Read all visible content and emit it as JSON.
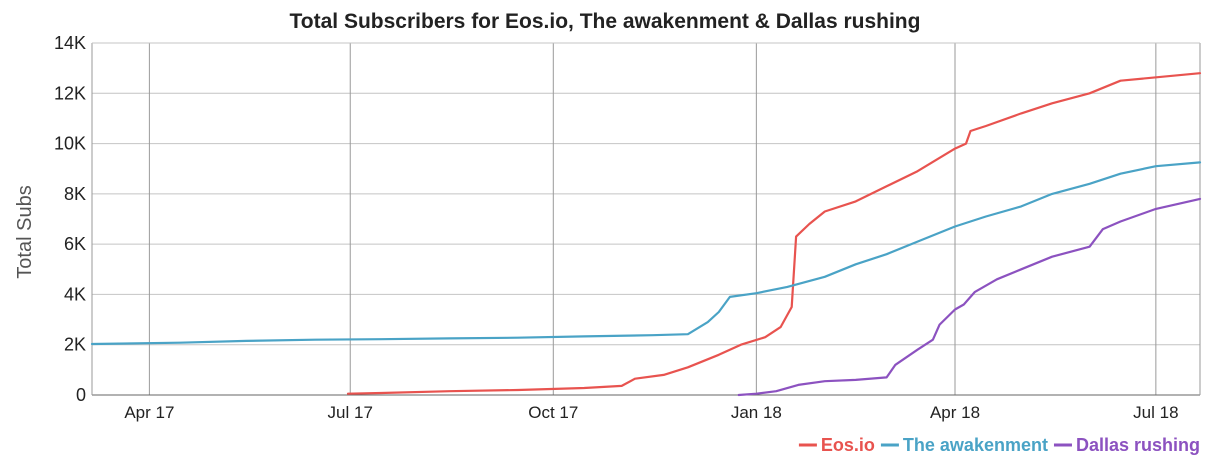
{
  "chart_data": {
    "type": "line",
    "title": "Total Subscribers for Eos.io, The awakenment & Dallas rushing",
    "xlabel": "",
    "ylabel": "Total Subs",
    "ylim": [
      0,
      14000
    ],
    "xlim": [
      "2017-03-06",
      "2018-07-21"
    ],
    "y_ticks": [
      {
        "value": 0,
        "label": "0"
      },
      {
        "value": 2000,
        "label": "2K"
      },
      {
        "value": 4000,
        "label": "4K"
      },
      {
        "value": 6000,
        "label": "6K"
      },
      {
        "value": 8000,
        "label": "8K"
      },
      {
        "value": 10000,
        "label": "10K"
      },
      {
        "value": 12000,
        "label": "12K"
      },
      {
        "value": 14000,
        "label": "14K"
      }
    ],
    "x_ticks": [
      {
        "date": "2017-04-01",
        "label": "Apr 17"
      },
      {
        "date": "2017-07-01",
        "label": "Jul 17"
      },
      {
        "date": "2017-10-01",
        "label": "Oct 17"
      },
      {
        "date": "2018-01-01",
        "label": "Jan 18"
      },
      {
        "date": "2018-04-01",
        "label": "Apr 18"
      },
      {
        "date": "2018-07-01",
        "label": "Jul 18"
      }
    ],
    "grid": true,
    "legend_position": "bottom-right",
    "series": [
      {
        "name": "Eos.io",
        "color": "#e8534f",
        "points": [
          [
            "2017-06-30",
            50
          ],
          [
            "2017-07-15",
            80
          ],
          [
            "2017-08-15",
            150
          ],
          [
            "2017-09-15",
            200
          ],
          [
            "2017-10-15",
            280
          ],
          [
            "2017-11-01",
            360
          ],
          [
            "2017-11-07",
            650
          ],
          [
            "2017-11-20",
            800
          ],
          [
            "2017-12-01",
            1100
          ],
          [
            "2017-12-15",
            1600
          ],
          [
            "2017-12-25",
            2000
          ],
          [
            "2018-01-05",
            2300
          ],
          [
            "2018-01-12",
            2700
          ],
          [
            "2018-01-17",
            3500
          ],
          [
            "2018-01-19",
            6300
          ],
          [
            "2018-01-25",
            6800
          ],
          [
            "2018-02-01",
            7300
          ],
          [
            "2018-02-15",
            7700
          ],
          [
            "2018-03-01",
            8300
          ],
          [
            "2018-03-15",
            8900
          ],
          [
            "2018-04-01",
            9800
          ],
          [
            "2018-04-06",
            10000
          ],
          [
            "2018-04-08",
            10500
          ],
          [
            "2018-04-15",
            10700
          ],
          [
            "2018-05-01",
            11200
          ],
          [
            "2018-05-15",
            11600
          ],
          [
            "2018-06-01",
            12000
          ],
          [
            "2018-06-15",
            12500
          ],
          [
            "2018-07-21",
            12800
          ]
        ]
      },
      {
        "name": "The awakenment",
        "color": "#4aa3c6",
        "points": [
          [
            "2017-03-06",
            2030
          ],
          [
            "2017-04-15",
            2080
          ],
          [
            "2017-05-15",
            2150
          ],
          [
            "2017-06-15",
            2200
          ],
          [
            "2017-07-15",
            2220
          ],
          [
            "2017-08-15",
            2250
          ],
          [
            "2017-09-15",
            2280
          ],
          [
            "2017-10-15",
            2330
          ],
          [
            "2017-11-15",
            2380
          ],
          [
            "2017-12-01",
            2420
          ],
          [
            "2017-12-10",
            2900
          ],
          [
            "2017-12-15",
            3300
          ],
          [
            "2017-12-20",
            3900
          ],
          [
            "2018-01-01",
            4050
          ],
          [
            "2018-01-15",
            4300
          ],
          [
            "2018-02-01",
            4700
          ],
          [
            "2018-02-15",
            5200
          ],
          [
            "2018-03-01",
            5600
          ],
          [
            "2018-03-15",
            6100
          ],
          [
            "2018-04-01",
            6700
          ],
          [
            "2018-04-15",
            7100
          ],
          [
            "2018-05-01",
            7500
          ],
          [
            "2018-05-15",
            8000
          ],
          [
            "2018-06-01",
            8400
          ],
          [
            "2018-06-15",
            8800
          ],
          [
            "2018-07-01",
            9100
          ],
          [
            "2018-07-21",
            9250
          ]
        ]
      },
      {
        "name": "Dallas rushing",
        "color": "#8c52c0",
        "points": [
          [
            "2017-12-24",
            0
          ],
          [
            "2018-01-01",
            50
          ],
          [
            "2018-01-10",
            150
          ],
          [
            "2018-01-20",
            400
          ],
          [
            "2018-02-01",
            550
          ],
          [
            "2018-02-15",
            600
          ],
          [
            "2018-03-01",
            700
          ],
          [
            "2018-03-05",
            1200
          ],
          [
            "2018-03-15",
            1800
          ],
          [
            "2018-03-22",
            2200
          ],
          [
            "2018-03-25",
            2800
          ],
          [
            "2018-04-01",
            3400
          ],
          [
            "2018-04-05",
            3600
          ],
          [
            "2018-04-10",
            4100
          ],
          [
            "2018-04-20",
            4600
          ],
          [
            "2018-05-01",
            5000
          ],
          [
            "2018-05-15",
            5500
          ],
          [
            "2018-06-01",
            5900
          ],
          [
            "2018-06-07",
            6600
          ],
          [
            "2018-06-15",
            6900
          ],
          [
            "2018-07-01",
            7400
          ],
          [
            "2018-07-21",
            7800
          ]
        ]
      }
    ]
  }
}
